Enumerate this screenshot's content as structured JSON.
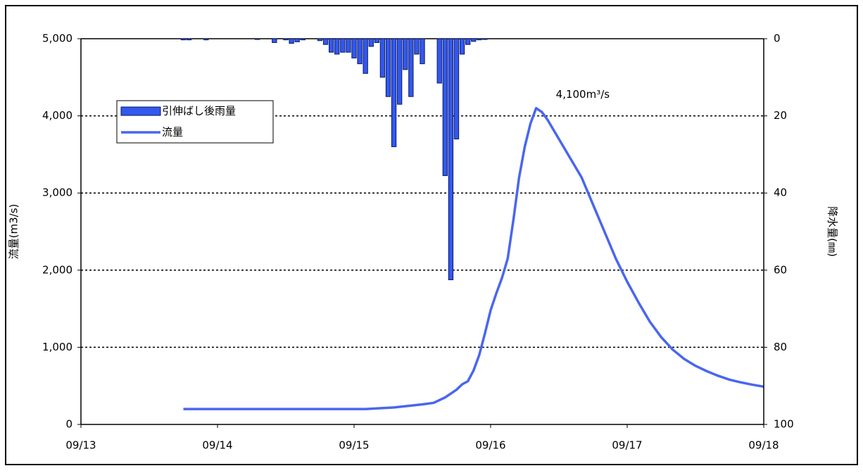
{
  "chart_data": {
    "type": "combo",
    "y_label": "流量(m3/s)",
    "y2_label": "降水量(㎜)",
    "annotation": "4,100m³/s",
    "xlim": [
      0,
      120
    ],
    "xticks": [
      {
        "value": 0,
        "label": "09/13"
      },
      {
        "value": 24,
        "label": "09/14"
      },
      {
        "value": 48,
        "label": "09/15"
      },
      {
        "value": 72,
        "label": "09/16"
      },
      {
        "value": 96,
        "label": "09/17"
      },
      {
        "value": 120,
        "label": "09/18"
      }
    ],
    "ylim": [
      0,
      5000
    ],
    "yticks": [
      0,
      {
        "value": 1000,
        "label": "1,000"
      },
      {
        "value": 2000,
        "label": "2,000"
      },
      {
        "value": 3000,
        "label": "3,000"
      },
      {
        "value": 4000,
        "label": "4,000"
      },
      {
        "value": 5000,
        "label": "5,000"
      }
    ],
    "y2lim": [
      100,
      0
    ],
    "y2ticks": [
      0,
      20,
      40,
      60,
      80,
      100
    ],
    "grid": true,
    "legend": "upper-left",
    "series": [
      {
        "name": "引伸ばし後雨量",
        "type": "bar",
        "axis": "y2",
        "color": "#3358ee",
        "x": [
          18,
          19,
          22,
          31,
          34,
          36,
          37,
          38,
          39,
          42,
          43,
          44,
          45,
          46,
          47,
          48,
          49,
          50,
          51,
          52,
          53,
          54,
          55,
          56,
          57,
          58,
          59,
          60,
          63,
          64,
          65,
          66,
          67,
          68,
          69,
          70,
          71
        ],
        "values": [
          0.3,
          0.3,
          0.3,
          0.2,
          1.0,
          0.3,
          1.2,
          0.8,
          0.3,
          0.5,
          1.5,
          3.5,
          4.0,
          3.5,
          3.5,
          5,
          6.5,
          9,
          2,
          1,
          10,
          15,
          28,
          17,
          8,
          15,
          4,
          6.5,
          11.5,
          35.5,
          62.5,
          26,
          4,
          1.5,
          0.7,
          0.3,
          0.2
        ]
      },
      {
        "name": "流量",
        "type": "line",
        "color": "#4a66ee",
        "x": [
          18,
          50,
          55,
          60,
          62,
          64,
          66,
          67,
          68,
          69,
          70,
          71,
          72,
          73,
          74,
          75,
          76,
          77,
          78,
          79,
          80,
          81,
          82,
          84,
          86,
          88,
          90,
          92,
          94,
          96,
          98,
          100,
          102,
          104,
          106,
          108,
          110,
          112,
          114,
          116,
          118,
          120
        ],
        "values": [
          200,
          200,
          220,
          260,
          280,
          350,
          450,
          520,
          560,
          700,
          900,
          1180,
          1480,
          1700,
          1900,
          2150,
          2650,
          3200,
          3600,
          3900,
          4100,
          4050,
          3950,
          3700,
          3450,
          3200,
          2850,
          2500,
          2150,
          1850,
          1580,
          1330,
          1130,
          970,
          850,
          760,
          690,
          630,
          580,
          545,
          515,
          490
        ]
      }
    ]
  }
}
